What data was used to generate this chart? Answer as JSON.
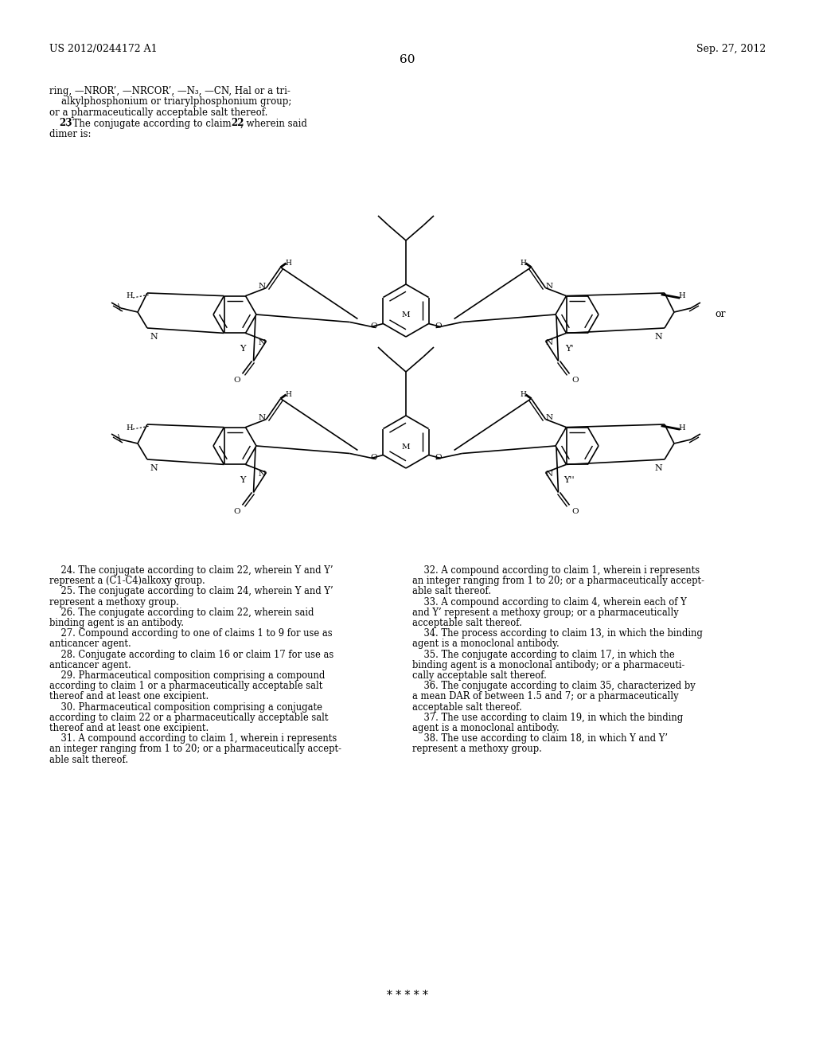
{
  "page_left": "US 2012/0244172 A1",
  "page_right": "Sep. 27, 2012",
  "page_number": "60",
  "header_lines": [
    "ring, —NROR’, —NRCOR’, —N₃, —CN, Hal or a tri-",
    "    alkylphosphonium or triarylphosphonium group;",
    "or a pharmaceutically acceptable salt thereof."
  ],
  "claim23_a": "    ",
  "claim23_b": "23",
  "claim23_c": ". The conjugate according to claim ",
  "claim23_d": "22",
  "claim23_e": ", wherein said",
  "claim23_f": "dimer is:",
  "or_text": "or",
  "claims_left": [
    [
      "    ",
      "24",
      ". The conjugate according to claim ",
      "22",
      ", wherein Y and Y’"
    ],
    [
      "represent a (C",
      "1",
      "-C",
      "4",
      ")alkoxy group."
    ],
    [
      "    ",
      "25",
      ". The conjugate according to claim ",
      "24",
      ", wherein Y and Y’"
    ],
    [
      "represent a methoxy group."
    ],
    [
      "    ",
      "26",
      ". The conjugate according to claim ",
      "22",
      ", wherein said"
    ],
    [
      "binding agent is an antibody."
    ],
    [
      "    ",
      "27",
      ". Compound according to one of claims 1 to 9 for use as"
    ],
    [
      "anticancer agent."
    ],
    [
      "    ",
      "28",
      ". Conjugate according to claim ",
      "16",
      " or claim ",
      "17",
      " for use as"
    ],
    [
      "anticancer agent."
    ],
    [
      "    ",
      "29",
      ". Pharmaceutical composition comprising a compound"
    ],
    [
      "according to claim ",
      "1",
      " or a pharmaceutically acceptable salt"
    ],
    [
      "thereof and at least one excipient."
    ],
    [
      "    ",
      "30",
      ". Pharmaceutical composition comprising a conjugate"
    ],
    [
      "according to claim ",
      "22",
      " or a pharmaceutically acceptable salt"
    ],
    [
      "thereof and at least one excipient."
    ],
    [
      "    ",
      "31",
      ". A compound according to claim ",
      "1",
      ", wherein i represents"
    ],
    [
      "an integer ranging from 1 to 20; or a pharmaceutically accept-"
    ],
    [
      "able salt thereof."
    ]
  ],
  "claims_right": [
    [
      "    ",
      "32",
      ". A compound according to claim ",
      "1",
      ", wherein i represents"
    ],
    [
      "an integer ranging from 1 to 20; or a pharmaceutically accept-"
    ],
    [
      "able salt thereof."
    ],
    [
      "    ",
      "33",
      ". A compound according to claim ",
      "4",
      ", wherein each of Y"
    ],
    [
      "and Y’ represent a methoxy group; or a pharmaceutically"
    ],
    [
      "acceptable salt thereof."
    ],
    [
      "    ",
      "34",
      ". The process according to claim ",
      "13",
      ", in which the binding"
    ],
    [
      "agent is a monoclonal antibody."
    ],
    [
      "    ",
      "35",
      ". The conjugate according to claim ",
      "17",
      ", in which the"
    ],
    [
      "binding agent is a monoclonal antibody; or a pharmaceuti-"
    ],
    [
      "cally acceptable salt thereof."
    ],
    [
      "    ",
      "36",
      ". The conjugate according to claim ",
      "35",
      ", characterized by"
    ],
    [
      "a mean DAR of between 1.5 and 7; or a pharmaceutically"
    ],
    [
      "acceptable salt thereof."
    ],
    [
      "    ",
      "37",
      ". The use according to claim ",
      "19",
      ", in which the binding"
    ],
    [
      "agent is a monoclonal antibody."
    ],
    [
      "    ",
      "38",
      ". The use according to claim ",
      "18",
      ", in which Y and Y’"
    ],
    [
      "represent a methoxy group."
    ]
  ],
  "asterisks": "* * * * *",
  "bg": "#ffffff",
  "fg": "#000000"
}
